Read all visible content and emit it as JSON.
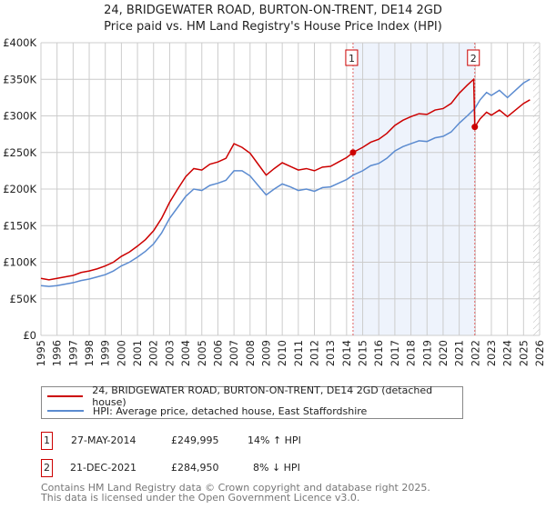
{
  "title": "24, BRIDGEWATER ROAD, BURTON-ON-TRENT, DE14 2GD",
  "subtitle": "Price paid vs. HM Land Registry's House Price Index (HPI)",
  "chart_data": {
    "type": "line",
    "xlim": [
      1995,
      2026
    ],
    "ylim": [
      0,
      400000
    ],
    "yticks": [
      0,
      50000,
      100000,
      150000,
      200000,
      250000,
      300000,
      350000,
      400000
    ],
    "ytick_labels": [
      "£0",
      "£50K",
      "£100K",
      "£150K",
      "£200K",
      "£250K",
      "£300K",
      "£350K",
      "£400K"
    ],
    "xticks": [
      1995,
      1996,
      1997,
      1998,
      1999,
      2000,
      2001,
      2002,
      2003,
      2004,
      2005,
      2006,
      2007,
      2008,
      2009,
      2010,
      2011,
      2012,
      2013,
      2014,
      2015,
      2016,
      2017,
      2018,
      2019,
      2020,
      2021,
      2022,
      2023,
      2024,
      2025,
      2026
    ],
    "grid": true,
    "shaded_range": [
      2014.4,
      2021.97
    ],
    "hatched_from": 2025.6,
    "series": [
      {
        "name": "24, BRIDGEWATER ROAD, BURTON-ON-TRENT, DE14 2GD (detached house)",
        "color": "#cc0000",
        "x": [
          1995,
          1995.5,
          1996,
          1996.5,
          1997,
          1997.5,
          1998,
          1998.5,
          1999,
          1999.5,
          2000,
          2000.5,
          2001,
          2001.5,
          2002,
          2002.5,
          2003,
          2003.5,
          2004,
          2004.5,
          2005,
          2005.5,
          2006,
          2006.5,
          2007,
          2007.5,
          2008,
          2008.5,
          2009,
          2009.5,
          2010,
          2010.5,
          2011,
          2011.5,
          2012,
          2012.5,
          2013,
          2013.5,
          2014,
          2014.4,
          2015,
          2015.5,
          2016,
          2016.5,
          2017,
          2017.5,
          2018,
          2018.5,
          2019,
          2019.5,
          2020,
          2020.5,
          2021,
          2021.5,
          2021.9,
          2021.97,
          2022.3,
          2022.7,
          2023,
          2023.5,
          2024,
          2024.5,
          2025,
          2025.4
        ],
        "y": [
          78000,
          76000,
          78000,
          80000,
          82000,
          86000,
          88000,
          91000,
          95000,
          100000,
          108000,
          114000,
          122000,
          131000,
          143000,
          160000,
          182000,
          200000,
          217000,
          228000,
          226000,
          234000,
          237000,
          242000,
          262000,
          257000,
          249000,
          234000,
          219000,
          228000,
          236000,
          231000,
          226000,
          228000,
          225000,
          230000,
          231000,
          237000,
          243000,
          249995,
          257000,
          264000,
          268000,
          276000,
          287000,
          294000,
          299000,
          303000,
          302000,
          308000,
          310000,
          317000,
          331000,
          342000,
          350000,
          284950,
          296000,
          305000,
          301000,
          308000,
          299000,
          308000,
          317000,
          322000
        ]
      },
      {
        "name": "HPI: Average price, detached house, East Staffordshire",
        "color": "#5b8bd0",
        "x": [
          1995,
          1995.5,
          1996,
          1996.5,
          1997,
          1997.5,
          1998,
          1998.5,
          1999,
          1999.5,
          2000,
          2000.5,
          2001,
          2001.5,
          2002,
          2002.5,
          2003,
          2003.5,
          2004,
          2004.5,
          2005,
          2005.5,
          2006,
          2006.5,
          2007,
          2007.5,
          2008,
          2008.5,
          2009,
          2009.5,
          2010,
          2010.5,
          2011,
          2011.5,
          2012,
          2012.5,
          2013,
          2013.5,
          2014,
          2014.4,
          2015,
          2015.5,
          2016,
          2016.5,
          2017,
          2017.5,
          2018,
          2018.5,
          2019,
          2019.5,
          2020,
          2020.5,
          2021,
          2021.5,
          2021.97,
          2022.3,
          2022.7,
          2023,
          2023.5,
          2024,
          2024.5,
          2025,
          2025.4
        ],
        "y": [
          68000,
          67000,
          68000,
          70000,
          72000,
          75000,
          77000,
          80000,
          83000,
          88000,
          95000,
          100000,
          107000,
          115000,
          125000,
          140000,
          160000,
          175000,
          190000,
          200000,
          198000,
          205000,
          208000,
          212000,
          225000,
          225000,
          218000,
          205000,
          192000,
          200000,
          207000,
          203000,
          198000,
          200000,
          197000,
          202000,
          203000,
          208000,
          213000,
          219000,
          225000,
          232000,
          235000,
          242000,
          252000,
          258000,
          262000,
          266000,
          265000,
          270000,
          272000,
          278000,
          290000,
          300000,
          310000,
          322000,
          332000,
          328000,
          335000,
          325000,
          335000,
          345000,
          350000
        ]
      }
    ],
    "sales": [
      {
        "label": "1",
        "x": 2014.4,
        "y": 249995
      },
      {
        "label": "2",
        "x": 2021.97,
        "y": 284950
      }
    ]
  },
  "legend": {
    "property": "24, BRIDGEWATER ROAD, BURTON-ON-TRENT, DE14 2GD (detached house)",
    "hpi": "HPI: Average price, detached house, East Staffordshire"
  },
  "transactions": [
    {
      "num": "1",
      "date": "27-MAY-2014",
      "price": "£249,995",
      "hpi": "14% ↑ HPI"
    },
    {
      "num": "2",
      "date": "21-DEC-2021",
      "price": "£284,950",
      "hpi": "8% ↓ HPI"
    }
  ],
  "footer": [
    "Contains HM Land Registry data © Crown copyright and database right 2025.",
    "This data is licensed under the Open Government Licence v3.0."
  ]
}
